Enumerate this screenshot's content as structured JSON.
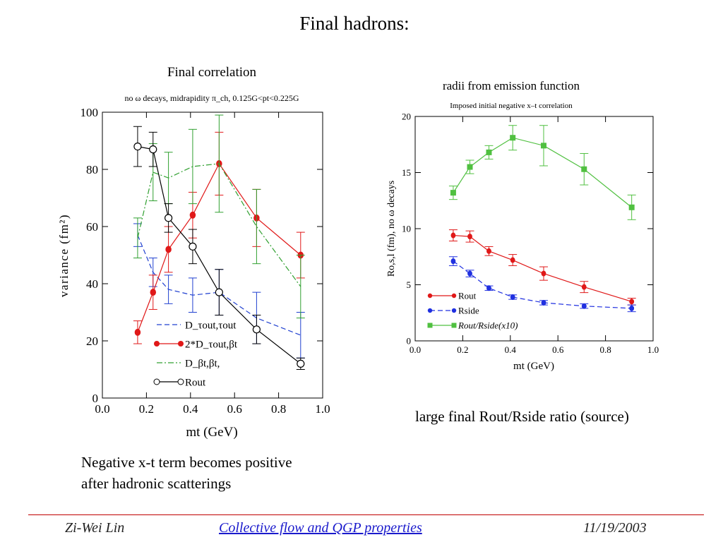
{
  "slide": {
    "title": "Final hadrons:",
    "caption_left_line1": "Negative x-t term becomes positive",
    "caption_left_line2": "after hadronic scatterings",
    "caption_right": "large final Rout/Rside ratio (source)",
    "footer": {
      "author": "Zi-Wei Lin",
      "title": "Collective flow and QGP properties",
      "date": "11/19/2003"
    }
  },
  "chart_data": [
    {
      "type": "line",
      "title": "Final correlation",
      "subtitle": "no ω decays, midrapidity π_ch, 0.125G<pt<0.225G",
      "xlabel": "mt (GeV)",
      "ylabel": "variance (fm²)",
      "xlim": [
        0.0,
        1.0
      ],
      "ylim": [
        0,
        100
      ],
      "xticks": [
        "0.0",
        "0.2",
        "0.4",
        "0.6",
        "0.8",
        "1.0"
      ],
      "yticks": [
        "0",
        "20",
        "40",
        "60",
        "80",
        "100"
      ],
      "grid": false,
      "legend_position": "bottom-right",
      "series": [
        {
          "name": "D_τout,τout",
          "color": "#2040d0",
          "style": "dashed",
          "marker": "none",
          "x": [
            0.16,
            0.23,
            0.3,
            0.41,
            0.53,
            0.7,
            0.9
          ],
          "y": [
            57,
            44,
            38,
            36,
            37,
            28,
            22
          ],
          "err": [
            4,
            5,
            5,
            6,
            8,
            9,
            8
          ]
        },
        {
          "name": "2*D_τout,βt",
          "color": "#e01818",
          "style": "solid",
          "marker": "filled-circle",
          "x": [
            0.16,
            0.23,
            0.3,
            0.41,
            0.53,
            0.7,
            0.9
          ],
          "y": [
            23,
            37,
            52,
            64,
            82,
            63,
            50
          ],
          "err": [
            4,
            6,
            8,
            8,
            11,
            10,
            8
          ]
        },
        {
          "name": "D_βt,βt,",
          "color": "#30a030",
          "style": "dashdot",
          "marker": "none",
          "x": [
            0.16,
            0.23,
            0.3,
            0.41,
            0.53,
            0.7,
            0.9
          ],
          "y": [
            56,
            79,
            77,
            81,
            82,
            60,
            39
          ],
          "err": [
            7,
            10,
            9,
            13,
            17,
            13,
            11
          ]
        },
        {
          "name": "Rout",
          "color": "#000000",
          "style": "solid",
          "marker": "open-circle",
          "x": [
            0.16,
            0.23,
            0.3,
            0.41,
            0.53,
            0.7,
            0.9
          ],
          "y": [
            88,
            87,
            63,
            53,
            37,
            24,
            12
          ],
          "err": [
            7,
            6,
            5,
            6,
            8,
            5,
            2
          ]
        }
      ]
    },
    {
      "type": "line",
      "title": "radii from emission function",
      "subtitle": "Imposed initial negative x–t correlation",
      "xlabel": "mt (GeV)",
      "ylabel": "Ro,s,l (fm), no ω decays",
      "xlim": [
        0.0,
        1.0
      ],
      "ylim": [
        0,
        20
      ],
      "xticks": [
        "0.0",
        "0.2",
        "0.4",
        "0.6",
        "0.8",
        "1.0"
      ],
      "yticks": [
        "0",
        "5",
        "10",
        "15",
        "20"
      ],
      "grid": false,
      "legend_position": "bottom-left",
      "series": [
        {
          "name": "Rout",
          "color": "#e01818",
          "style": "solid",
          "marker": "filled-circle",
          "x": [
            0.16,
            0.23,
            0.31,
            0.41,
            0.54,
            0.71,
            0.91
          ],
          "y": [
            9.4,
            9.3,
            8.0,
            7.2,
            6.0,
            4.8,
            3.5
          ],
          "err": [
            0.5,
            0.5,
            0.4,
            0.5,
            0.6,
            0.5,
            0.3
          ]
        },
        {
          "name": "Rside",
          "color": "#2030e0",
          "style": "dashed",
          "marker": "filled-circle",
          "x": [
            0.16,
            0.23,
            0.31,
            0.41,
            0.54,
            0.71,
            0.91
          ],
          "y": [
            7.1,
            6.0,
            4.7,
            3.9,
            3.4,
            3.1,
            2.9
          ],
          "err": [
            0.4,
            0.3,
            0.2,
            0.2,
            0.2,
            0.2,
            0.3
          ]
        },
        {
          "name": "Rout/Rside(x10)",
          "color": "#50c040",
          "style": "solid",
          "marker": "filled-square",
          "x": [
            0.16,
            0.23,
            0.31,
            0.41,
            0.54,
            0.71,
            0.91
          ],
          "y": [
            13.2,
            15.5,
            16.8,
            18.1,
            17.4,
            15.3,
            11.9
          ],
          "err": [
            0.6,
            0.6,
            0.6,
            1.1,
            1.8,
            1.4,
            1.1
          ]
        }
      ]
    }
  ]
}
